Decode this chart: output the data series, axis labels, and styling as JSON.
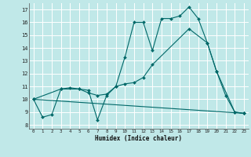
{
  "xlabel": "Humidex (Indice chaleur)",
  "bg_color": "#c0e8e8",
  "grid_color": "#ffffff",
  "line_color": "#006868",
  "xlim": [
    -0.5,
    23.5
  ],
  "ylim": [
    7.7,
    17.5
  ],
  "xticks": [
    0,
    1,
    2,
    3,
    4,
    5,
    6,
    7,
    8,
    9,
    10,
    11,
    12,
    13,
    14,
    15,
    16,
    17,
    18,
    19,
    20,
    21,
    22,
    23
  ],
  "yticks": [
    8,
    9,
    10,
    11,
    12,
    13,
    14,
    15,
    16,
    17
  ],
  "line1_x": [
    0,
    1,
    2,
    3,
    4,
    5,
    6,
    7,
    8,
    9,
    10,
    11,
    12,
    13,
    14,
    15,
    16,
    17,
    18,
    19,
    20,
    21,
    22,
    23
  ],
  "line1_y": [
    10.0,
    8.6,
    8.8,
    10.8,
    10.9,
    10.8,
    10.7,
    8.4,
    10.3,
    11.0,
    13.3,
    16.0,
    16.0,
    13.8,
    16.3,
    16.3,
    16.5,
    17.2,
    16.3,
    14.4,
    12.2,
    10.3,
    9.0,
    8.9
  ],
  "line2_x": [
    0,
    3,
    5,
    6,
    7,
    8,
    9,
    10,
    11,
    12,
    13,
    17,
    19,
    20,
    22,
    23
  ],
  "line2_y": [
    10.0,
    10.8,
    10.8,
    10.5,
    10.3,
    10.4,
    11.0,
    11.2,
    11.3,
    11.7,
    12.7,
    15.5,
    14.4,
    12.2,
    9.0,
    8.9
  ],
  "line3_x": [
    0,
    23
  ],
  "line3_y": [
    10.0,
    8.9
  ]
}
